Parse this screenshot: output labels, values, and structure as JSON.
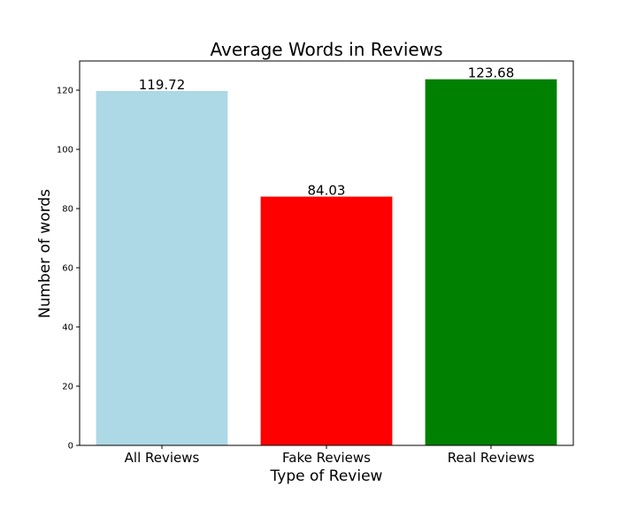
{
  "chart_data": {
    "type": "bar",
    "title": "Average Words in Reviews",
    "xlabel": "Type of Review",
    "ylabel": "Number of words",
    "categories": [
      "All Reviews",
      "Fake Reviews",
      "Real Reviews"
    ],
    "values": [
      119.72,
      84.03,
      123.68
    ],
    "value_labels": [
      "119.72",
      "84.03",
      "123.68"
    ],
    "colors": [
      "#add8e6",
      "#ff0000",
      "#008000"
    ],
    "ylim": [
      0,
      129.86
    ],
    "yticks": [
      0,
      20,
      40,
      60,
      80,
      100,
      120
    ],
    "grid": false,
    "legend": "none"
  }
}
